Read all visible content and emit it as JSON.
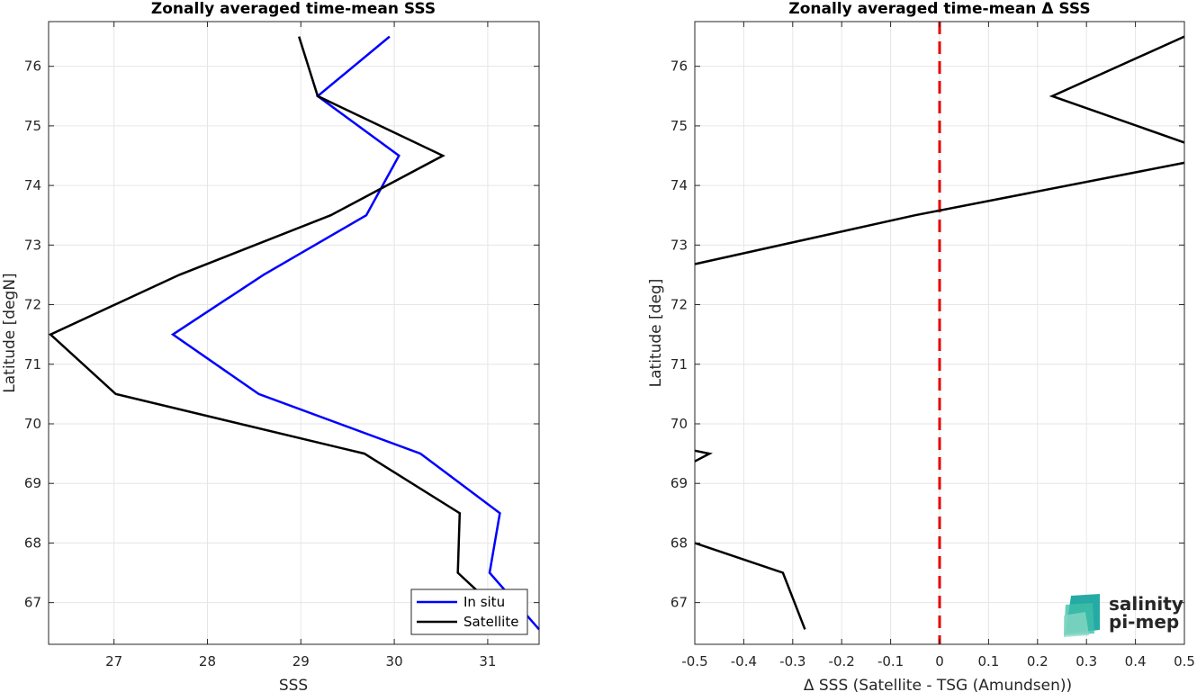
{
  "chart_data": [
    {
      "type": "line",
      "title": "Zonally averaged time-mean SSS",
      "xlabel": "SSS",
      "ylabel": "Latitude [degN]",
      "xlim": [
        26.3,
        31.55
      ],
      "ylim": [
        66.3,
        76.75
      ],
      "xticks": [
        27,
        28,
        29,
        30,
        31
      ],
      "yticks": [
        67,
        68,
        69,
        70,
        71,
        72,
        73,
        74,
        75,
        76
      ],
      "grid": true,
      "legend_position": "bottom-right",
      "series": [
        {
          "name": "In situ",
          "color": "#0000ff",
          "points": [
            [
              29.95,
              76.5
            ],
            [
              29.18,
              75.5
            ],
            [
              30.05,
              74.5
            ],
            [
              29.7,
              73.5
            ],
            [
              28.6,
              72.5
            ],
            [
              27.63,
              71.5
            ],
            [
              28.55,
              70.5
            ],
            [
              30.28,
              69.5
            ],
            [
              31.13,
              68.5
            ],
            [
              31.02,
              67.5
            ],
            [
              31.55,
              66.55
            ]
          ]
        },
        {
          "name": "Satellite",
          "color": "#000000",
          "points": [
            [
              28.98,
              76.5
            ],
            [
              29.18,
              75.5
            ],
            [
              30.52,
              74.5
            ],
            [
              29.32,
              73.5
            ],
            [
              27.7,
              72.5
            ],
            [
              26.32,
              71.5
            ],
            [
              27.02,
              70.5
            ],
            [
              29.68,
              69.5
            ],
            [
              30.7,
              68.5
            ],
            [
              30.68,
              67.5
            ],
            [
              30.92,
              67.15
            ]
          ]
        }
      ]
    },
    {
      "type": "line",
      "title": "Zonally averaged time-mean Δ SSS",
      "xlabel": "Δ SSS (Satellite - TSG (Amundsen))",
      "ylabel": "Latitude [deg]",
      "xlim": [
        -0.5,
        0.5
      ],
      "ylim": [
        66.3,
        76.75
      ],
      "xticks": [
        "-0.5",
        "-0.4",
        "-0.3",
        "-0.2",
        "-0.1",
        "0",
        "0.1",
        "0.2",
        "0.3",
        "0.4",
        "0.5"
      ],
      "yticks": [
        67,
        68,
        69,
        70,
        71,
        72,
        73,
        74,
        75,
        76
      ],
      "grid": true,
      "reference_line": {
        "x": 0,
        "color": "#e60000",
        "style": "dashed"
      },
      "series": [
        {
          "color": "#000000",
          "segments": [
            [
              [
                0.5,
                76.5
              ],
              [
                0.23,
                75.5
              ],
              [
                0.5,
                74.72
              ]
            ],
            [
              [
                0.5,
                74.38
              ],
              [
                -0.05,
                73.5
              ],
              [
                -0.5,
                72.68
              ]
            ],
            [
              [
                -0.5,
                69.55
              ],
              [
                -0.47,
                69.5
              ],
              [
                -0.5,
                69.37
              ]
            ],
            [
              [
                -0.5,
                68.0
              ],
              [
                -0.32,
                67.5
              ],
              [
                -0.275,
                66.55
              ]
            ]
          ]
        }
      ]
    }
  ],
  "logo": {
    "line1": "salinity",
    "line2": "pi-mep",
    "color": "#1aa5a0"
  }
}
